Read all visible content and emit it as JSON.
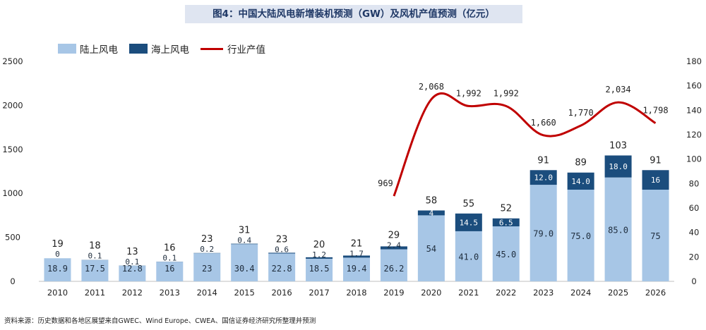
{
  "title": "图4：中国大陆风电新增装机预测（GW）及风机产值预测（亿元）",
  "legend": {
    "onshore": "陆上风电",
    "offshore": "海上风电",
    "output": "行业产值"
  },
  "source": "资料来源：历史数据和各地区展望来自GWEC、Wind Europe、CWEA、国信证券经济研究所整理并预测",
  "colors": {
    "onshore": "#a7c6e6",
    "offshore": "#1b4d7d",
    "line": "#c00000",
    "title_bg": "#dfe5f1"
  },
  "chart_data": {
    "type": "bar",
    "stacked": true,
    "categories": [
      "2010",
      "2011",
      "2012",
      "2013",
      "2014",
      "2015",
      "2016",
      "2017",
      "2018",
      "2019",
      "2020",
      "2021",
      "2022",
      "2023",
      "2024",
      "2025",
      "2026"
    ],
    "left_axis": {
      "min": 0,
      "max": 2500,
      "ticks": [
        0,
        500,
        1000,
        1500,
        2000,
        2500
      ]
    },
    "right_axis": {
      "min": 0,
      "max": 180,
      "ticks": [
        0,
        20,
        40,
        60,
        80,
        100,
        120,
        140,
        160,
        180
      ]
    },
    "series": [
      {
        "name": "陆上风电",
        "axis": "right",
        "values": [
          18.9,
          17.5,
          12.8,
          16,
          23,
          30.4,
          22.8,
          18.5,
          19.4,
          26.2,
          54,
          41.0,
          45.0,
          79.0,
          75.0,
          85.0,
          75
        ],
        "labels": [
          "18.9",
          "17.5",
          "12.8",
          "16",
          "23",
          "30.4",
          "22.8",
          "18.5",
          "19.4",
          "26.2",
          "54",
          "41.0",
          "45.0",
          "79.0",
          "75.0",
          "85.0",
          "75"
        ]
      },
      {
        "name": "海上风电",
        "axis": "right",
        "values": [
          0,
          0.1,
          0.1,
          0.1,
          0.2,
          0.4,
          0.6,
          1.2,
          1.7,
          2.4,
          4,
          14.5,
          6.5,
          12.0,
          14.0,
          18.0,
          16
        ],
        "labels": [
          "0",
          "0.1",
          "0.1",
          "0.1",
          "0.2",
          "0.4",
          "0.6",
          "1.2",
          "1.7",
          "2.4",
          "4",
          "14.5",
          "6.5",
          "12.0",
          "14.0",
          "18.0",
          "16"
        ]
      },
      {
        "name": "行业产值",
        "axis": "left",
        "type": "line",
        "x": [
          "2019",
          "2020",
          "2021",
          "2022",
          "2023",
          "2024",
          "2025",
          "2026"
        ],
        "values": [
          969,
          2068,
          1992,
          1992,
          1660,
          1770,
          2034,
          1798
        ],
        "labels": [
          "969",
          "2,068",
          "1,992",
          "1,992",
          "1,660",
          "1,770",
          "2,034",
          "1,798"
        ]
      }
    ],
    "totals": [
      "19",
      "18",
      "13",
      "16",
      "23",
      "31",
      "23",
      "20",
      "21",
      "29",
      "58",
      "55",
      "52",
      "91",
      "89",
      "103",
      "91"
    ]
  }
}
